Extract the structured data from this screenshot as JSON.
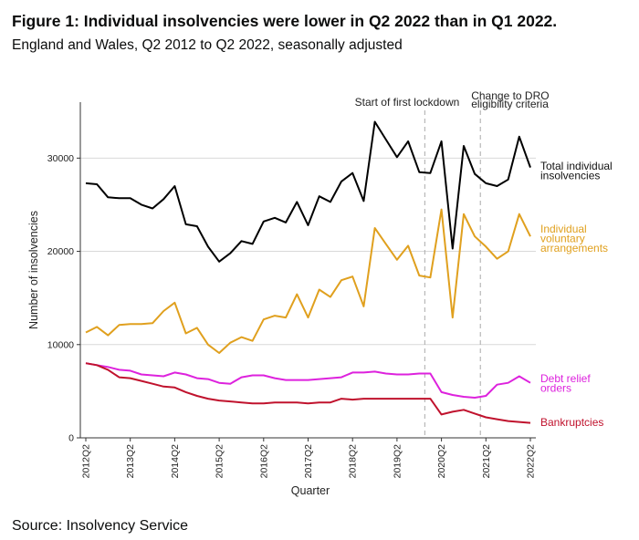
{
  "header": {
    "title": "Figure 1: Individual insolvencies were lower in Q2 2022 than in Q1 2022.",
    "subtitle": "England and Wales, Q2 2012 to Q2 2022, seasonally adjusted"
  },
  "footer": {
    "source": "Source: Insolvency Service"
  },
  "chart_data": {
    "type": "line",
    "title": "Figure 1: Individual insolvencies were lower in Q2 2022 than in Q1 2022.",
    "subtitle": "England and Wales, Q2 2012 to Q2 2022, seasonally adjusted",
    "xlabel": "Quarter",
    "ylabel": "Number of insolvencies",
    "ylim": [
      0,
      36000
    ],
    "yticks": [
      0,
      10000,
      20000,
      30000
    ],
    "ytick_labels": [
      "0",
      "10000",
      "20000",
      "30000"
    ],
    "xtick_labels": [
      "2012Q2",
      "2013Q2",
      "2014Q2",
      "2015Q2",
      "2016Q2",
      "2017Q2",
      "2018Q2",
      "2019Q2",
      "2020Q2",
      "2021Q2",
      "2022Q2"
    ],
    "xtick_indices": [
      0,
      4,
      8,
      12,
      16,
      20,
      24,
      28,
      32,
      36,
      40
    ],
    "grid": true,
    "annotations": [
      {
        "label": "Start of first lockdown",
        "lines": [
          "Start of first lockdown"
        ],
        "x_index": 30.5
      },
      {
        "label": "Change to DRO eligibility criteria",
        "lines": [
          "Change to DRO",
          "eligibility criteria"
        ],
        "x_index": 35.5
      }
    ],
    "series": [
      {
        "name": "Total individual insolvencies",
        "label_lines": [
          "Total individual",
          "insolvencies"
        ],
        "color": "#000000",
        "values": [
          27300,
          27200,
          25800,
          25700,
          25700,
          25000,
          24600,
          25600,
          27000,
          22900,
          22700,
          20500,
          18900,
          19800,
          21100,
          20800,
          23200,
          23600,
          23100,
          25300,
          22800,
          25900,
          25300,
          27500,
          28400,
          25400,
          33900,
          32000,
          30100,
          31800,
          28500,
          28400,
          31800,
          20300,
          31300,
          28300,
          27300,
          27000,
          27700,
          32300,
          29000
        ]
      },
      {
        "name": "Individual voluntary arrangements",
        "label_lines": [
          "Individual",
          "voluntary",
          "arrangements"
        ],
        "color": "#e0a01e",
        "values": [
          11300,
          11900,
          11000,
          12100,
          12200,
          12200,
          12300,
          13600,
          14500,
          11200,
          11800,
          10000,
          9100,
          10200,
          10800,
          10400,
          12700,
          13100,
          12900,
          15400,
          12900,
          15900,
          15100,
          16900,
          17300,
          14100,
          22500,
          20800,
          19100,
          20600,
          17400,
          17200,
          24500,
          12900,
          24000,
          21600,
          20500,
          19200,
          20000,
          24000,
          21600
        ]
      },
      {
        "name": "Debt relief orders",
        "label_lines": [
          "Debt relief",
          "orders"
        ],
        "color": "#dd22dd",
        "values": [
          8000,
          7800,
          7600,
          7300,
          7200,
          6800,
          6700,
          6600,
          7000,
          6800,
          6400,
          6300,
          5900,
          5800,
          6500,
          6700,
          6700,
          6400,
          6200,
          6200,
          6200,
          6300,
          6400,
          6500,
          7000,
          7000,
          7100,
          6900,
          6800,
          6800,
          6900,
          6900,
          4900,
          4600,
          4400,
          4300,
          4500,
          5700,
          5900,
          6600,
          5900
        ]
      },
      {
        "name": "Bankruptcies",
        "label_lines": [
          "Bankruptcies"
        ],
        "color": "#c0122d",
        "values": [
          8000,
          7800,
          7300,
          6500,
          6400,
          6100,
          5800,
          5500,
          5400,
          4900,
          4500,
          4200,
          4000,
          3900,
          3800,
          3700,
          3700,
          3800,
          3800,
          3800,
          3700,
          3800,
          3800,
          4200,
          4100,
          4200,
          4200,
          4200,
          4200,
          4200,
          4200,
          4200,
          2500,
          2800,
          3000,
          2600,
          2200,
          2000,
          1800,
          1700,
          1600
        ]
      }
    ]
  }
}
